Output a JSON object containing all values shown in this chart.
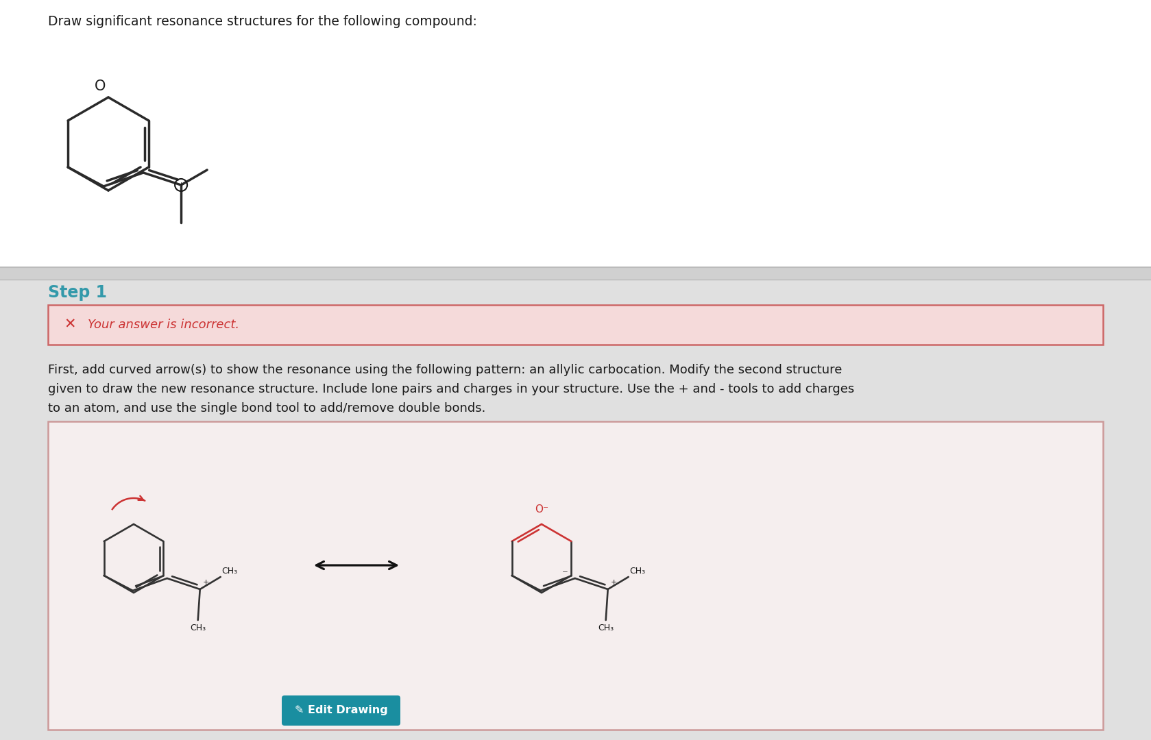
{
  "bg_color": "#d8d8d8",
  "top_panel_bg": "#e8e8e8",
  "white_panel_bg": "#ffffff",
  "title_text": "Draw significant resonance structures for the following compound:",
  "step1_text": "Step 1",
  "step1_color": "#3399aa",
  "incorrect_text": "Your answer is incorrect.",
  "incorrect_bg": "#f5dada",
  "incorrect_border": "#cc6666",
  "incorrect_x_color": "#cc3333",
  "body_line1": "First, add curved arrow(s) to show the resonance using the following pattern: an allylic carbocation. Modify the second structure",
  "body_line2": "given to draw the new resonance structure. Include lone pairs and charges in your structure. Use the + and - tools to add charges",
  "body_line3": "to an atom, and use the single bond tool to add/remove double bonds.",
  "edit_btn_color": "#1a8ea0",
  "edit_btn_text": "Edit Drawing",
  "ring_color": "#2a2a2a",
  "red_color": "#cc3333",
  "sep_color": "#cccccc",
  "draw_panel_bg": "#f5eeee",
  "draw_panel_border": "#cc9999"
}
